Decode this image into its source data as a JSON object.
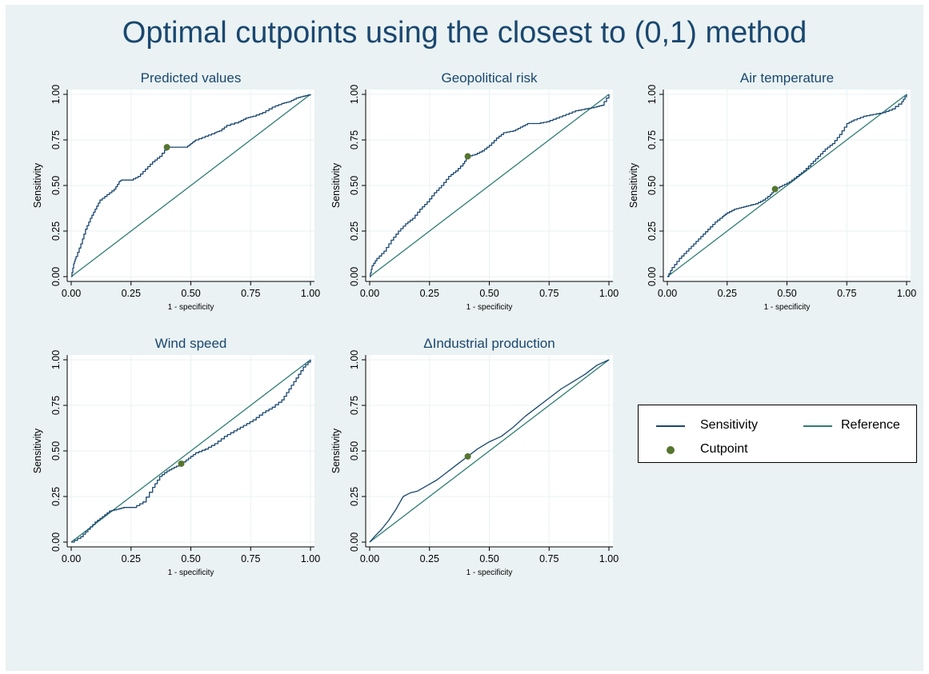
{
  "title": "Optimal cutpoints using the closest to (0,1) method",
  "colors": {
    "background": "#eaf2f3",
    "plot_background": "#ffffff",
    "sensitivity": "#1a476f",
    "reference": "#2e7d72",
    "cutpoint": "#55752f",
    "title": "#1a476f"
  },
  "legend": {
    "placement": "right",
    "items": [
      {
        "label": "Sensitivity",
        "marker": "line",
        "color": "#1a476f"
      },
      {
        "label": "Reference",
        "marker": "line",
        "color": "#2e7d72"
      },
      {
        "label": "Cutpoint",
        "marker": "dot",
        "color": "#55752f"
      }
    ]
  },
  "chart_data": [
    {
      "type": "line",
      "title": "Predicted values",
      "xlabel": "1 - specificity",
      "ylabel": "Sensitivity",
      "xlim": [
        0,
        1
      ],
      "ylim": [
        0,
        1
      ],
      "xticks": [
        "0.00",
        "0.25",
        "0.50",
        "0.75",
        "1.00"
      ],
      "yticks": [
        "0.00",
        "0.25",
        "0.50",
        "0.75",
        "1.00"
      ],
      "grid": true,
      "cutpoint": {
        "x": 0.4,
        "y": 0.71
      },
      "series": [
        {
          "name": "Sensitivity",
          "style": "step",
          "x": [
            0,
            0.01,
            0.02,
            0.04,
            0.06,
            0.08,
            0.1,
            0.12,
            0.15,
            0.18,
            0.2,
            0.21,
            0.22,
            0.25,
            0.28,
            0.31,
            0.34,
            0.37,
            0.4,
            0.44,
            0.48,
            0.5,
            0.52,
            0.56,
            0.6,
            0.62,
            0.65,
            0.7,
            0.73,
            0.76,
            0.8,
            0.84,
            0.88,
            0.91,
            0.94,
            0.97,
            1.0
          ],
          "y": [
            0,
            0.07,
            0.11,
            0.18,
            0.26,
            0.32,
            0.37,
            0.42,
            0.45,
            0.48,
            0.52,
            0.53,
            0.53,
            0.53,
            0.55,
            0.59,
            0.63,
            0.66,
            0.71,
            0.71,
            0.71,
            0.73,
            0.75,
            0.77,
            0.79,
            0.8,
            0.83,
            0.85,
            0.87,
            0.88,
            0.9,
            0.93,
            0.95,
            0.96,
            0.98,
            0.99,
            1.0
          ]
        },
        {
          "name": "Reference",
          "x": [
            0,
            1
          ],
          "y": [
            0,
            1
          ]
        }
      ]
    },
    {
      "type": "line",
      "title": "Geopolitical risk",
      "xlabel": "1 - specificity",
      "ylabel": "Sensitivity",
      "xlim": [
        0,
        1
      ],
      "ylim": [
        0,
        1
      ],
      "xticks": [
        "0.00",
        "0.25",
        "0.50",
        "0.75",
        "1.00"
      ],
      "yticks": [
        "0.00",
        "0.25",
        "0.50",
        "0.75",
        "1.00"
      ],
      "grid": true,
      "cutpoint": {
        "x": 0.41,
        "y": 0.66
      },
      "series": [
        {
          "name": "Sensitivity",
          "style": "step",
          "x": [
            0,
            0.01,
            0.03,
            0.06,
            0.09,
            0.12,
            0.15,
            0.18,
            0.21,
            0.24,
            0.27,
            0.3,
            0.33,
            0.36,
            0.39,
            0.41,
            0.44,
            0.47,
            0.5,
            0.53,
            0.56,
            0.6,
            0.63,
            0.66,
            0.7,
            0.74,
            0.78,
            0.82,
            0.86,
            0.9,
            0.94,
            0.97,
            1.0
          ],
          "y": [
            0,
            0.06,
            0.1,
            0.14,
            0.2,
            0.25,
            0.29,
            0.32,
            0.37,
            0.41,
            0.46,
            0.5,
            0.55,
            0.58,
            0.62,
            0.66,
            0.67,
            0.69,
            0.72,
            0.76,
            0.79,
            0.8,
            0.82,
            0.84,
            0.84,
            0.85,
            0.87,
            0.89,
            0.91,
            0.92,
            0.93,
            0.94,
            1.0
          ]
        },
        {
          "name": "Reference",
          "x": [
            0,
            1
          ],
          "y": [
            0,
            1
          ]
        }
      ]
    },
    {
      "type": "line",
      "title": "Air temperature",
      "xlabel": "1 - specificity",
      "ylabel": "Sensitivity",
      "xlim": [
        0,
        1
      ],
      "ylim": [
        0,
        1
      ],
      "xticks": [
        "0.00",
        "0.25",
        "0.50",
        "0.75",
        "1.00"
      ],
      "yticks": [
        "0.00",
        "0.25",
        "0.50",
        "0.75",
        "1.00"
      ],
      "grid": true,
      "cutpoint": {
        "x": 0.45,
        "y": 0.48
      },
      "series": [
        {
          "name": "Sensitivity",
          "style": "step",
          "x": [
            0,
            0.02,
            0.05,
            0.08,
            0.11,
            0.14,
            0.17,
            0.2,
            0.23,
            0.25,
            0.28,
            0.31,
            0.34,
            0.37,
            0.4,
            0.43,
            0.45,
            0.48,
            0.51,
            0.54,
            0.57,
            0.6,
            0.63,
            0.66,
            0.69,
            0.72,
            0.75,
            0.78,
            0.82,
            0.86,
            0.9,
            0.94,
            0.98,
            1.0
          ],
          "y": [
            0,
            0.05,
            0.1,
            0.14,
            0.18,
            0.22,
            0.26,
            0.3,
            0.33,
            0.35,
            0.37,
            0.38,
            0.39,
            0.4,
            0.42,
            0.45,
            0.48,
            0.5,
            0.52,
            0.55,
            0.58,
            0.62,
            0.66,
            0.7,
            0.73,
            0.78,
            0.84,
            0.86,
            0.88,
            0.89,
            0.9,
            0.92,
            0.96,
            1.0
          ]
        },
        {
          "name": "Reference",
          "x": [
            0,
            1
          ],
          "y": [
            0,
            1
          ]
        }
      ]
    },
    {
      "type": "line",
      "title": "Wind speed",
      "xlabel": "1 - specificity",
      "ylabel": "Sensitivity",
      "xlim": [
        0,
        1
      ],
      "ylim": [
        0,
        1
      ],
      "xticks": [
        "0.00",
        "0.25",
        "0.50",
        "0.75",
        "1.00"
      ],
      "yticks": [
        "0.00",
        "0.25",
        "0.50",
        "0.75",
        "1.00"
      ],
      "grid": true,
      "cutpoint": {
        "x": 0.46,
        "y": 0.43
      },
      "series": [
        {
          "name": "Sensitivity",
          "style": "step",
          "x": [
            0,
            0.04,
            0.07,
            0.1,
            0.13,
            0.16,
            0.19,
            0.22,
            0.26,
            0.3,
            0.34,
            0.37,
            0.4,
            0.43,
            0.46,
            0.49,
            0.52,
            0.56,
            0.6,
            0.64,
            0.68,
            0.72,
            0.76,
            0.8,
            0.84,
            0.88,
            0.91,
            0.94,
            0.97,
            1.0
          ],
          "y": [
            0,
            0.03,
            0.07,
            0.11,
            0.14,
            0.17,
            0.18,
            0.19,
            0.19,
            0.22,
            0.3,
            0.36,
            0.39,
            0.41,
            0.43,
            0.46,
            0.49,
            0.51,
            0.54,
            0.58,
            0.61,
            0.64,
            0.67,
            0.71,
            0.74,
            0.78,
            0.84,
            0.9,
            0.96,
            1.0
          ]
        },
        {
          "name": "Reference",
          "x": [
            0,
            1
          ],
          "y": [
            0,
            1
          ]
        }
      ]
    },
    {
      "type": "line",
      "title": "ΔIndustrial production",
      "xlabel": "1 - specificity",
      "ylabel": "Sensitivity",
      "xlim": [
        0,
        1
      ],
      "ylim": [
        0,
        1
      ],
      "xticks": [
        "0.00",
        "0.25",
        "0.50",
        "0.75",
        "1.00"
      ],
      "yticks": [
        "0.00",
        "0.25",
        "0.50",
        "0.75",
        "1.00"
      ],
      "grid": true,
      "cutpoint": {
        "x": 0.41,
        "y": 0.47
      },
      "series": [
        {
          "name": "Sensitivity",
          "style": "smooth",
          "x": [
            0,
            0.02,
            0.05,
            0.08,
            0.11,
            0.14,
            0.17,
            0.2,
            0.24,
            0.28,
            0.32,
            0.36,
            0.41,
            0.45,
            0.5,
            0.55,
            0.6,
            0.65,
            0.7,
            0.75,
            0.8,
            0.85,
            0.9,
            0.95,
            1.0
          ],
          "y": [
            0,
            0.03,
            0.07,
            0.12,
            0.18,
            0.25,
            0.27,
            0.28,
            0.31,
            0.34,
            0.38,
            0.42,
            0.47,
            0.51,
            0.55,
            0.58,
            0.63,
            0.69,
            0.74,
            0.79,
            0.84,
            0.88,
            0.92,
            0.97,
            1.0
          ]
        },
        {
          "name": "Reference",
          "x": [
            0,
            1
          ],
          "y": [
            0,
            1
          ]
        }
      ]
    }
  ]
}
